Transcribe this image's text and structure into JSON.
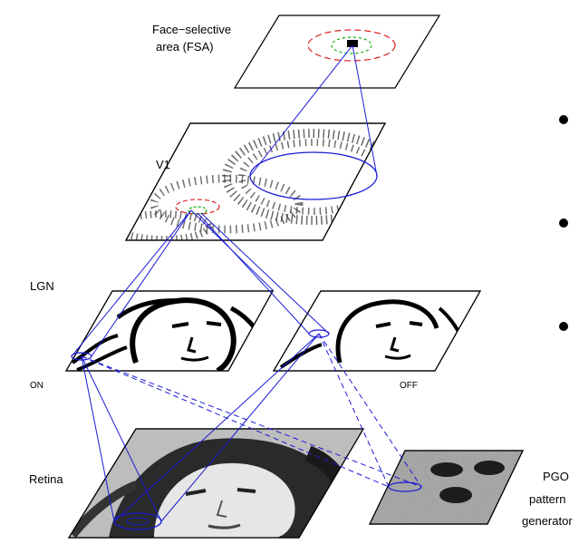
{
  "labels": {
    "fsa_line1": "Face−selective",
    "fsa_line2": "area (FSA)",
    "v1": "V1",
    "lgn": "LGN",
    "on": "ON",
    "off": "OFF",
    "retina": "Retina",
    "pgo_line1": "PGO",
    "pgo_line2": "pattern",
    "pgo_line3": "generator"
  },
  "colors": {
    "connection": "#1a1ad6",
    "red_circle": "#e02020",
    "green_circle": "#10b010",
    "sheet_border": "#000000"
  }
}
